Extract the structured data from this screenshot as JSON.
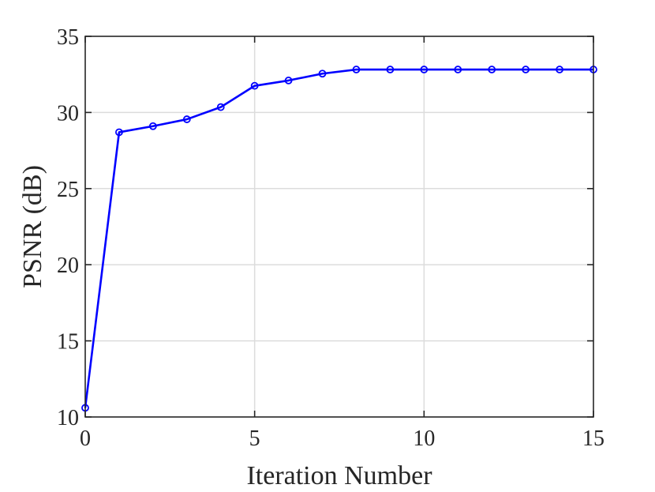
{
  "chart_data": {
    "type": "line",
    "title": "",
    "xlabel": "Iteration Number",
    "ylabel": "PSNR (dB)",
    "xlim": [
      0,
      15
    ],
    "ylim": [
      10,
      35
    ],
    "xticks": [
      "0",
      "5",
      "10",
      "15"
    ],
    "yticks": [
      "10",
      "15",
      "20",
      "25",
      "30",
      "35"
    ],
    "grid": true,
    "legend": "none",
    "series": [
      {
        "color": "#0000ff",
        "marker": "circle",
        "x": [
          0,
          1,
          2,
          3,
          4,
          5,
          6,
          7,
          8,
          9,
          10,
          11,
          12,
          13,
          14,
          15
        ],
        "y": [
          10.6,
          28.7,
          29.1,
          29.55,
          30.35,
          31.75,
          32.1,
          32.55,
          32.82,
          32.82,
          32.82,
          32.82,
          32.82,
          32.82,
          32.82,
          32.82
        ]
      }
    ]
  }
}
